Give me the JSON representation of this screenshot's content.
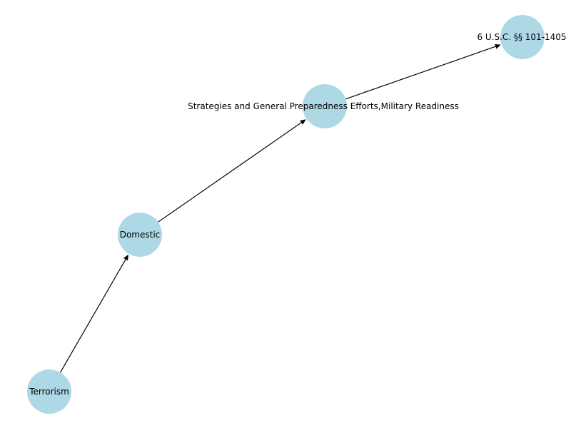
{
  "graph": {
    "node_color": "#add8e6",
    "edge_color": "#000000",
    "nodes": [
      {
        "id": "terrorism",
        "label": "Terrorism"
      },
      {
        "id": "domestic",
        "label": "Domestic"
      },
      {
        "id": "strategies",
        "label": "Strategies and General Preparedness Efforts,Military Readiness"
      },
      {
        "id": "usc",
        "label": "6 U.S.C. §§ 101-1405"
      }
    ],
    "edges": [
      {
        "from": "terrorism",
        "to": "domestic"
      },
      {
        "from": "domestic",
        "to": "strategies"
      },
      {
        "from": "strategies",
        "to": "usc"
      }
    ]
  }
}
